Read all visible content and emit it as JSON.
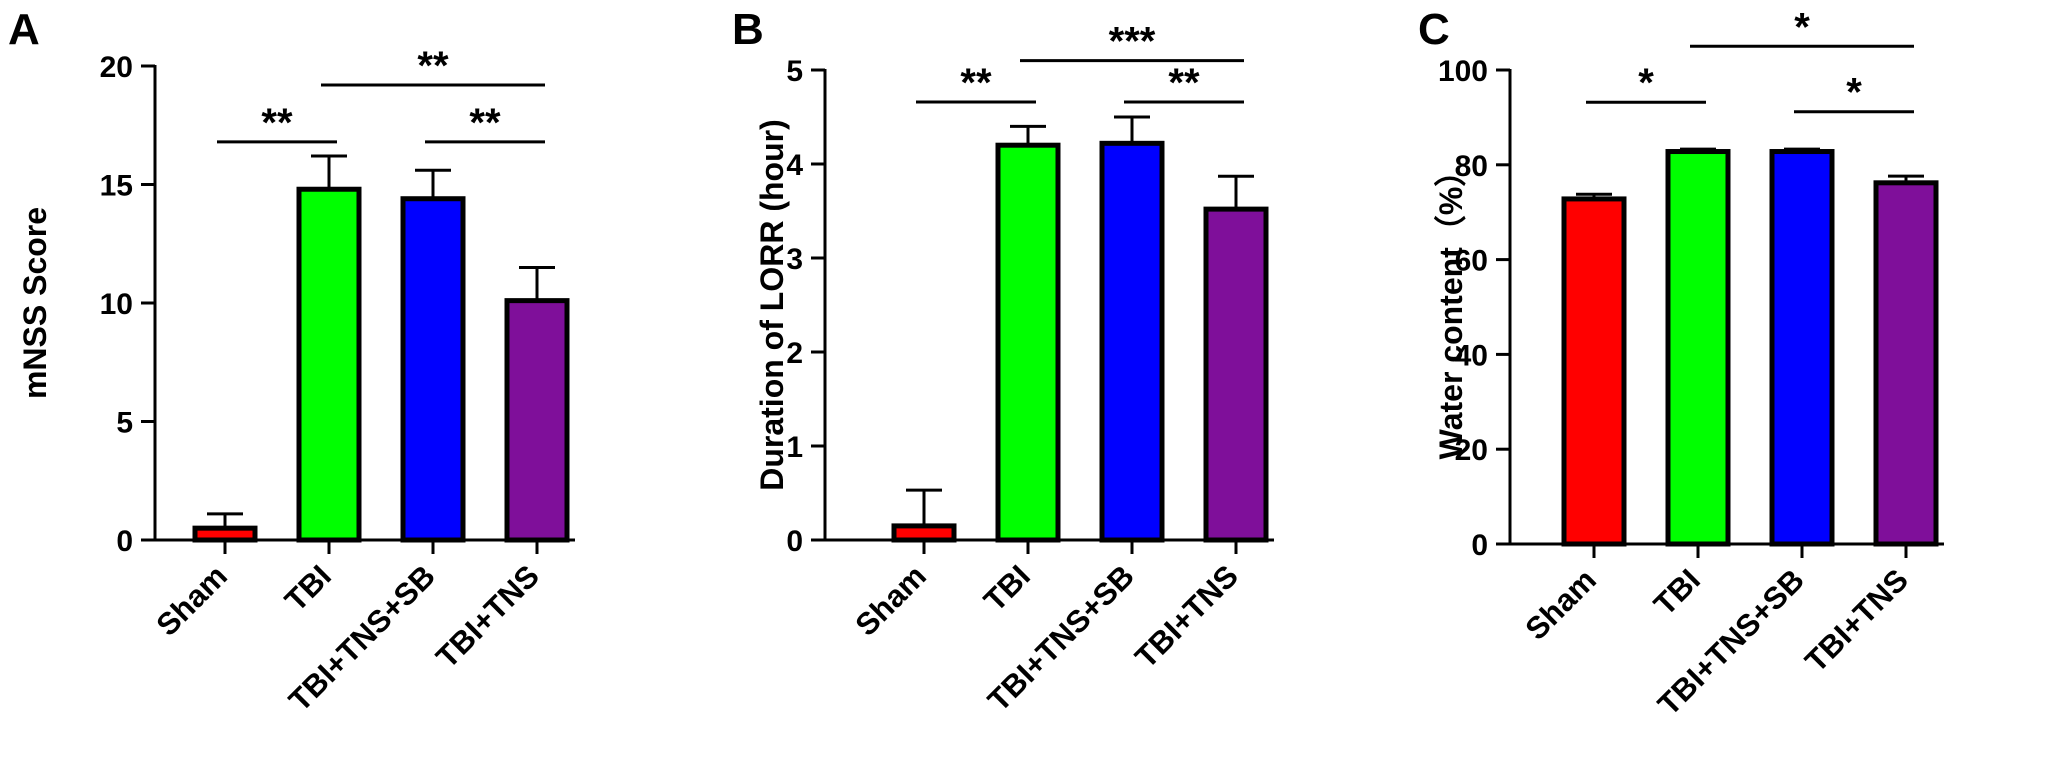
{
  "chart_data": [
    {
      "type": "bar",
      "panel": "A",
      "categories": [
        "Sham",
        "TBI",
        "TBI+TNS+SB",
        "TBI+TNS"
      ],
      "values": [
        0.5,
        14.8,
        14.4,
        10.1
      ],
      "errors": [
        0.6,
        1.4,
        1.2,
        1.4
      ],
      "colors": [
        "#ff0000",
        "#00ff00",
        "#0000ff",
        "#7f0f9a"
      ],
      "title": "",
      "xlabel": "",
      "ylabel": "mNSS Score",
      "ylim": [
        0,
        20
      ],
      "yticks": [
        0,
        5,
        10,
        15,
        20
      ],
      "grid": false,
      "significance": [
        {
          "from": 0,
          "to": 1,
          "y": 16.8,
          "label": "**"
        },
        {
          "from": 1,
          "to": 3,
          "y": 19.2,
          "label": "**"
        },
        {
          "from": 2,
          "to": 3,
          "y": 16.8,
          "label": "**"
        }
      ]
    },
    {
      "type": "bar",
      "panel": "B",
      "categories": [
        "Sham",
        "TBI",
        "TBI+TNS+SB",
        "TBI+TNS"
      ],
      "values": [
        0.15,
        4.2,
        4.22,
        3.52
      ],
      "errors": [
        0.38,
        0.2,
        0.28,
        0.35
      ],
      "colors": [
        "#ff0000",
        "#00ff00",
        "#0000ff",
        "#7f0f9a"
      ],
      "title": "",
      "xlabel": "",
      "ylabel": "Duration of LORR (hour)",
      "ylim": [
        0,
        5
      ],
      "yticks": [
        0,
        1,
        2,
        3,
        4,
        5
      ],
      "grid": false,
      "significance": [
        {
          "from": 0,
          "to": 1,
          "y": 4.66,
          "label": "**"
        },
        {
          "from": 1,
          "to": 3,
          "y": 5.1,
          "label": "***"
        },
        {
          "from": 2,
          "to": 3,
          "y": 4.66,
          "label": "**"
        }
      ]
    },
    {
      "type": "bar",
      "panel": "C",
      "categories": [
        "Sham",
        "TBI",
        "TBI+TNS+SB",
        "TBI+TNS"
      ],
      "values": [
        72.8,
        82.8,
        82.8,
        76.2
      ],
      "errors": [
        1.0,
        0.5,
        0.5,
        1.4
      ],
      "colors": [
        "#ff0000",
        "#00ff00",
        "#0000ff",
        "#7f0f9a"
      ],
      "title": "",
      "xlabel": "",
      "ylabel": "Water content（%）",
      "ylim": [
        0,
        100
      ],
      "yticks": [
        0,
        20,
        40,
        60,
        80,
        100
      ],
      "grid": false,
      "significance": [
        {
          "from": 0,
          "to": 1,
          "y": 93.2,
          "label": "*"
        },
        {
          "from": 1,
          "to": 3,
          "y": 105.0,
          "label": "*"
        },
        {
          "from": 2,
          "to": 3,
          "y": 91.2,
          "label": "*"
        }
      ]
    }
  ]
}
